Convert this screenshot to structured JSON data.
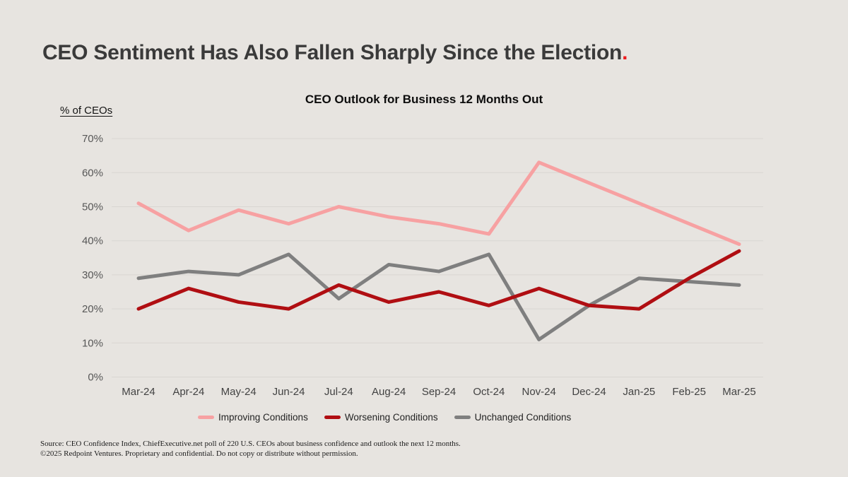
{
  "slide_title": {
    "text": "CEO Sentiment Has Also Fallen Sharply Since the Election",
    "period": "."
  },
  "accent_color": "#ee1b1e",
  "background_color": "#e7e4e0",
  "chart_data": {
    "type": "line",
    "title": "CEO Outlook for Business 12 Months Out",
    "ylabel": "% of CEOs",
    "xlabel": "",
    "categories": [
      "Mar-24",
      "Apr-24",
      "May-24",
      "Jun-24",
      "Jul-24",
      "Aug-24",
      "Sep-24",
      "Oct-24",
      "Nov-24",
      "Dec-24",
      "Jan-25",
      "Feb-25",
      "Mar-25"
    ],
    "series": [
      {
        "name": "Improving Conditions",
        "color": "#f7a1a2",
        "values": [
          51,
          43,
          49,
          45,
          50,
          47,
          45,
          42,
          63,
          57,
          51,
          45,
          39
        ]
      },
      {
        "name": "Worsening Conditions",
        "color": "#b00e12",
        "values": [
          20,
          26,
          22,
          20,
          27,
          22,
          25,
          21,
          26,
          21,
          20,
          29,
          37
        ]
      },
      {
        "name": "Unchanged Conditions",
        "color": "#7f7f7f",
        "values": [
          29,
          31,
          30,
          36,
          23,
          33,
          31,
          36,
          11,
          21,
          29,
          28,
          27
        ]
      }
    ],
    "y_ticks": [
      0,
      10,
      20,
      30,
      40,
      50,
      60,
      70
    ],
    "y_tick_labels": [
      "0%",
      "10%",
      "20%",
      "30%",
      "40%",
      "50%",
      "60%",
      "70%"
    ],
    "ylim": [
      0,
      75
    ],
    "grid": "horizontal",
    "gridline_color": "#d9d6d2",
    "legend_position": "bottom"
  },
  "footer": {
    "line1": "Source: CEO Confidence Index, ChiefExecutive.net poll of 220 U.S. CEOs about business confidence and outlook the next 12 months.",
    "line2": "©2025 Redpoint Ventures. Proprietary and confidential. Do not copy or distribute without permission."
  }
}
